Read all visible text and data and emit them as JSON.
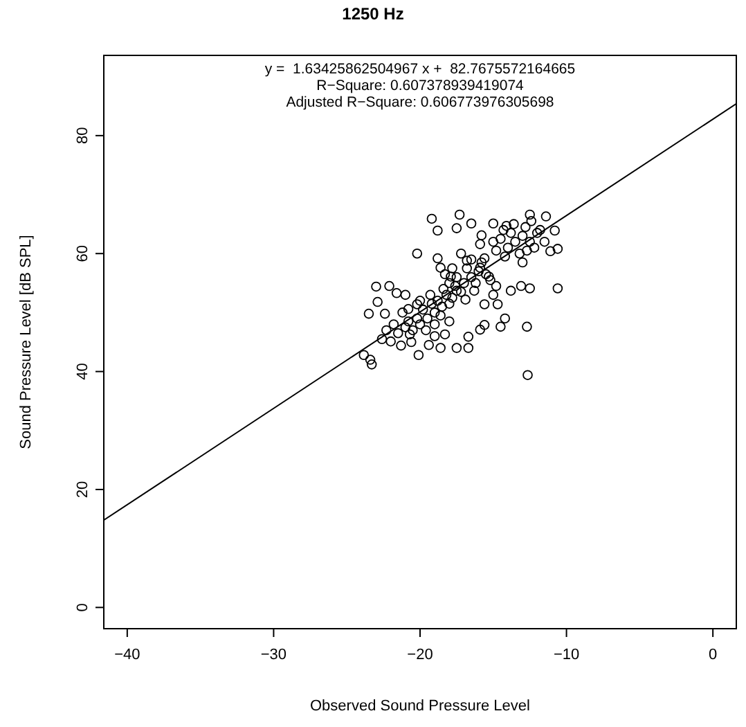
{
  "chart_data": {
    "type": "scatter",
    "title": "1250 Hz",
    "xlabel": "Observed Sound Pressure Level",
    "ylabel": "Sound Pressure Level [dB SPL]",
    "annotations": [
      "y =  1.63425862504967 x +  82.7675572164665",
      "R−Square: 0.607378939419074",
      "Adjusted R−Square: 0.606773976305698"
    ],
    "xlim": [
      -41.6,
      1.6
    ],
    "ylim": [
      -3.6,
      93.6
    ],
    "xticks": [
      -40,
      -30,
      -20,
      -10,
      0
    ],
    "yticks": [
      0,
      20,
      40,
      60,
      80
    ],
    "grid": false,
    "series": [
      {
        "color": "#000000",
        "marker": "circle",
        "x": [
          -23.84,
          -23.3,
          -23.4,
          -23.0,
          -22.1,
          -22.9,
          -23.5,
          -22.4,
          -21.6,
          -20.2,
          -19.2,
          -18.8,
          -17.3,
          -16.5,
          -17.5,
          -15.8,
          -15.0,
          -14.1,
          -12.5,
          -11.4,
          -10.8,
          -10.6,
          -11.1,
          -10.6,
          -12.7,
          -12.65,
          -12.5,
          -13.1,
          -13.8,
          -14.7,
          -14.2,
          -14.5,
          -15.6,
          -15.9,
          -16.7,
          -17.5,
          -18.6,
          -20.1,
          -21.3,
          -22.0,
          -16.7,
          -18.3,
          -20.2,
          -21.0,
          -20.8,
          -20.7,
          -18.8,
          -18.6,
          -18.3,
          -17.2,
          -16.8,
          -15.9,
          -15.6,
          -15.3,
          -15.9,
          -17.9,
          -17.5,
          -16.9,
          -16.3,
          -15.0,
          -15.6,
          -20,
          -19.5,
          -19,
          -18.5,
          -19.8,
          -20.5,
          -21,
          -21.5,
          -19,
          -18.8,
          -18,
          -18.2,
          -17.8,
          -19.2,
          -20.2,
          -19.6,
          -18.6,
          -20.8,
          -21.8,
          -22.3,
          -19.3,
          -18.4,
          -17.6,
          -17.2,
          -20,
          -19,
          -18,
          -21.2,
          -22.6,
          -20.6,
          -19.4,
          -17,
          -16.5,
          -16,
          -16.8,
          -17.5,
          -15.5,
          -16.2,
          -17.8,
          -15.8,
          -16.5,
          -18,
          -15.2,
          -14.8,
          -14,
          -13.5,
          -13,
          -12.5,
          -12,
          -13.8,
          -14.5,
          -12.8,
          -13.2,
          -14.2,
          -12.2,
          -11.8,
          -13.6,
          -12.4,
          -14.8,
          -13,
          -11.5,
          -14.3,
          -15,
          -12.7
        ],
        "values": [
          42.8,
          41.2,
          42.0,
          54.4,
          54.5,
          51.8,
          49.8,
          49.8,
          53.3,
          60.0,
          65.9,
          63.9,
          66.6,
          65.1,
          64.3,
          63.1,
          65.1,
          64.7,
          66.6,
          66.3,
          63.9,
          60.8,
          60.4,
          54.1,
          47.6,
          39.4,
          54.1,
          54.5,
          53.7,
          51.4,
          49.0,
          47.6,
          47.9,
          47.1,
          45.9,
          44.0,
          44.0,
          42.8,
          44.4,
          45.1,
          44.0,
          46.3,
          51.4,
          53.0,
          50.6,
          46.3,
          59.2,
          57.6,
          56.5,
          60.0,
          58.8,
          57.6,
          59.2,
          56.1,
          61.6,
          56.1,
          53.7,
          52.2,
          53.7,
          53.0,
          51.4,
          48,
          49,
          50,
          51,
          50.5,
          47,
          47.5,
          46.5,
          48,
          52,
          51.5,
          53,
          52.5,
          51.5,
          49,
          47,
          49.5,
          48.5,
          48,
          47,
          53,
          54,
          54.5,
          53.5,
          52,
          46,
          48.5,
          50,
          45.5,
          45,
          44.5,
          55,
          56,
          57,
          57.5,
          56,
          56.5,
          55,
          57.5,
          58.5,
          59,
          55,
          55.5,
          54.5,
          61,
          62,
          63,
          62,
          63.5,
          63.5,
          62.5,
          64.5,
          60,
          59.5,
          61,
          64,
          65,
          65.5,
          60.5,
          58.5,
          62,
          64,
          62,
          60.5
        ]
      },
      {
        "type": "line",
        "color": "#000000",
        "line_style": "solid",
        "x": [
          -41.6,
          1.6
        ],
        "values": [
          14.8,
          85.4
        ]
      }
    ]
  }
}
